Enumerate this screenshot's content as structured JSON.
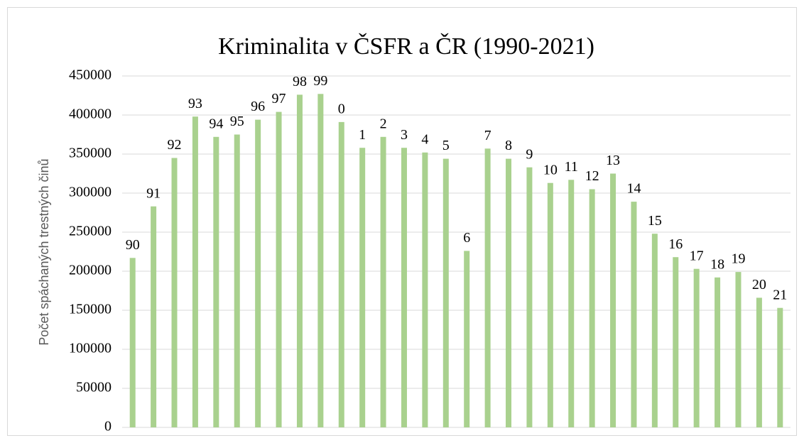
{
  "chart_data": {
    "type": "bar",
    "title": "Kriminalita v ČSFR a ČR (1990-2021)",
    "y_label": "Počet spáchaných trestných činů",
    "categories": [
      "90",
      "91",
      "92",
      "93",
      "94",
      "95",
      "96",
      "97",
      "98",
      "99",
      "0",
      "1",
      "2",
      "3",
      "4",
      "5",
      "6",
      "7",
      "8",
      "9",
      "10",
      "11",
      "12",
      "13",
      "14",
      "15",
      "16",
      "17",
      "18",
      "19",
      "20",
      "21"
    ],
    "values": [
      217000,
      283000,
      345000,
      398000,
      372000,
      375000,
      394000,
      404000,
      426000,
      427000,
      391000,
      358000,
      372000,
      358000,
      352000,
      344000,
      226000,
      357000,
      344000,
      333000,
      313000,
      317000,
      305000,
      325000,
      289000,
      248000,
      218000,
      203000,
      192000,
      199000,
      166000,
      153000
    ],
    "color": "#a9d18e",
    "ylim": [
      0,
      450000
    ],
    "yticks": [
      0,
      50000,
      100000,
      150000,
      200000,
      250000,
      300000,
      350000,
      400000,
      450000
    ],
    "grid": true
  }
}
